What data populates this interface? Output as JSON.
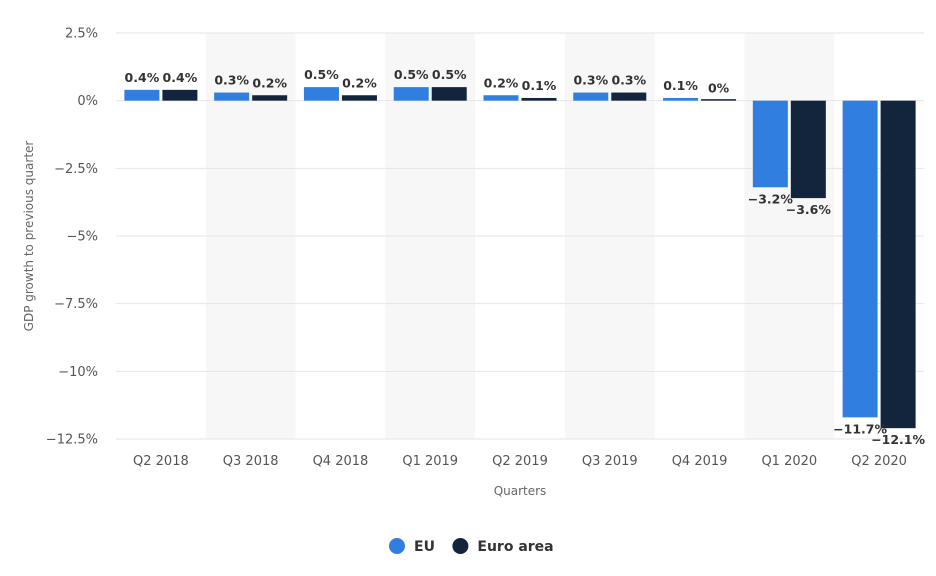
{
  "chart_data": {
    "type": "bar",
    "categories": [
      "Q2 2018",
      "Q3 2018",
      "Q4 2018",
      "Q1 2019",
      "Q2 2019",
      "Q3 2019",
      "Q4 2019",
      "Q1 2020",
      "Q2 2020"
    ],
    "series": [
      {
        "name": "EU",
        "color": "#2f7ee0",
        "values": [
          0.4,
          0.3,
          0.5,
          0.5,
          0.2,
          0.3,
          0.1,
          -3.2,
          -11.7
        ],
        "labels": [
          "0.4%",
          "0.3%",
          "0.5%",
          "0.5%",
          "0.2%",
          "0.3%",
          "0.1%",
          "−3.2%",
          "−11.7%"
        ]
      },
      {
        "name": "Euro area",
        "color": "#13253d",
        "values": [
          0.4,
          0.2,
          0.2,
          0.5,
          0.1,
          0.3,
          0.0,
          -3.6,
          -12.1
        ],
        "labels": [
          "0.4%",
          "0.2%",
          "0.2%",
          "0.5%",
          "0.1%",
          "0.3%",
          "0%",
          "−3.6%",
          "−12.1%"
        ]
      }
    ],
    "xlabel": "Quarters",
    "ylabel": "GDP growth to previous quarter",
    "ylim": [
      -12.5,
      2.5
    ],
    "yticks": [
      2.5,
      0,
      -2.5,
      -5,
      -7.5,
      -10,
      -12.5
    ],
    "ytick_labels": [
      "2.5%",
      "0%",
      "−2.5%",
      "−5%",
      "−7.5%",
      "−10%",
      "−12.5%"
    ],
    "grid": true,
    "legend_position": "bottom-center"
  }
}
